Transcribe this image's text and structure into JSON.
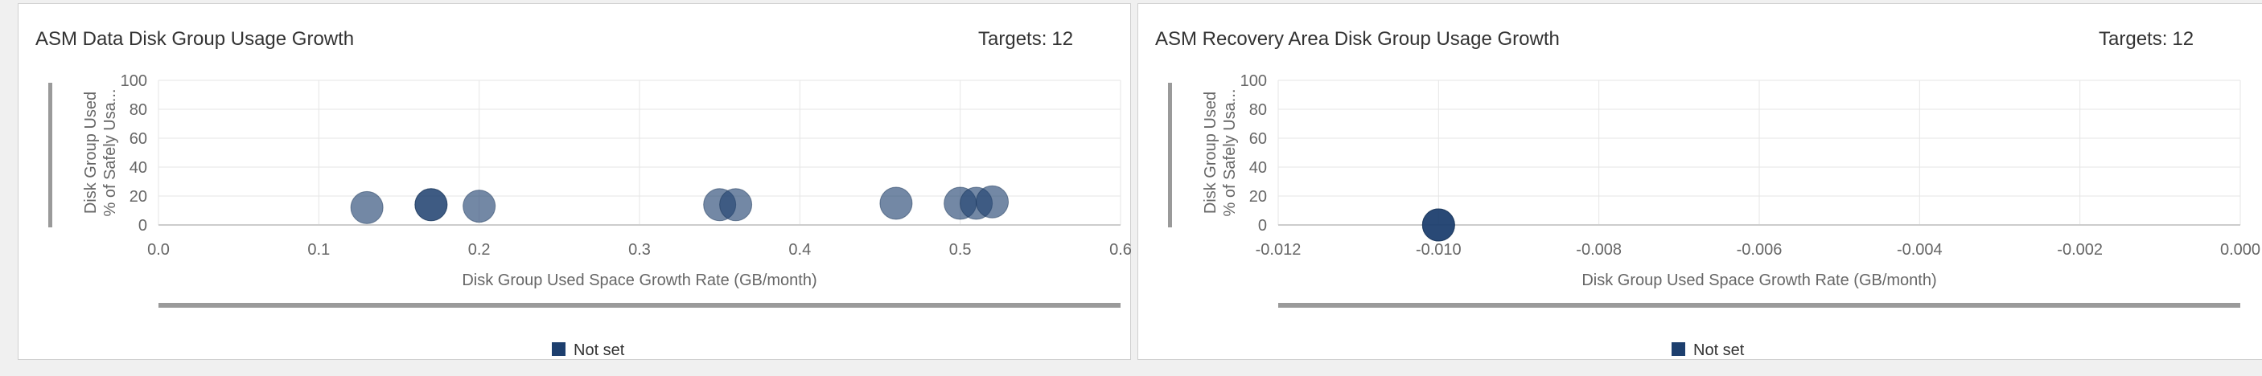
{
  "panels": [
    {
      "title": "ASM Data Disk Group Usage Growth",
      "targets_label": "Targets:",
      "targets_count": "12"
    },
    {
      "title": "ASM Recovery Area Disk Group Usage Growth",
      "targets_label": "Targets:",
      "targets_count": "12"
    }
  ],
  "colors": {
    "point_fill": "#1d3f6e",
    "gridline": "#e6e6e6",
    "axis_text": "#666666",
    "scrollbar": "#9a9a9a"
  },
  "chart_data": [
    {
      "type": "scatter",
      "title": "ASM Data Disk Group Usage Growth",
      "xlabel": "Disk Group Used Space Growth Rate (GB/month)",
      "ylabel_lines": [
        "Disk Group Used",
        "% of Safely Usa..."
      ],
      "xlim": [
        0.0,
        0.6
      ],
      "ylim": [
        0,
        100
      ],
      "x_ticks": [
        "0.0",
        "0.1",
        "0.2",
        "0.3",
        "0.4",
        "0.5",
        "0.6"
      ],
      "y_ticks": [
        "0",
        "20",
        "40",
        "60",
        "80",
        "100"
      ],
      "grid": true,
      "legend_position": "bottom",
      "series": [
        {
          "name": "Not set",
          "points": [
            {
              "x": 0.13,
              "y": 12
            },
            {
              "x": 0.17,
              "y": 14
            },
            {
              "x": 0.17,
              "y": 14
            },
            {
              "x": 0.2,
              "y": 13
            },
            {
              "x": 0.35,
              "y": 14
            },
            {
              "x": 0.36,
              "y": 14
            },
            {
              "x": 0.46,
              "y": 15
            },
            {
              "x": 0.5,
              "y": 15
            },
            {
              "x": 0.51,
              "y": 15
            },
            {
              "x": 0.52,
              "y": 16
            }
          ]
        }
      ]
    },
    {
      "type": "scatter",
      "title": "ASM Recovery Area Disk Group Usage Growth",
      "xlabel": "Disk Group Used Space Growth Rate (GB/month)",
      "ylabel_lines": [
        "Disk Group Used",
        "% of Safely Usa..."
      ],
      "xlim": [
        -0.012,
        0.0
      ],
      "ylim": [
        0,
        100
      ],
      "x_ticks": [
        "-0.012",
        "-0.010",
        "-0.008",
        "-0.006",
        "-0.004",
        "-0.002",
        "0.000"
      ],
      "y_ticks": [
        "0",
        "20",
        "40",
        "60",
        "80",
        "100"
      ],
      "grid": true,
      "legend_position": "bottom",
      "series": [
        {
          "name": "Not set",
          "points": [
            {
              "x": -0.01,
              "y": 0
            },
            {
              "x": -0.01,
              "y": 0
            },
            {
              "x": -0.01,
              "y": 0
            }
          ]
        }
      ]
    }
  ]
}
